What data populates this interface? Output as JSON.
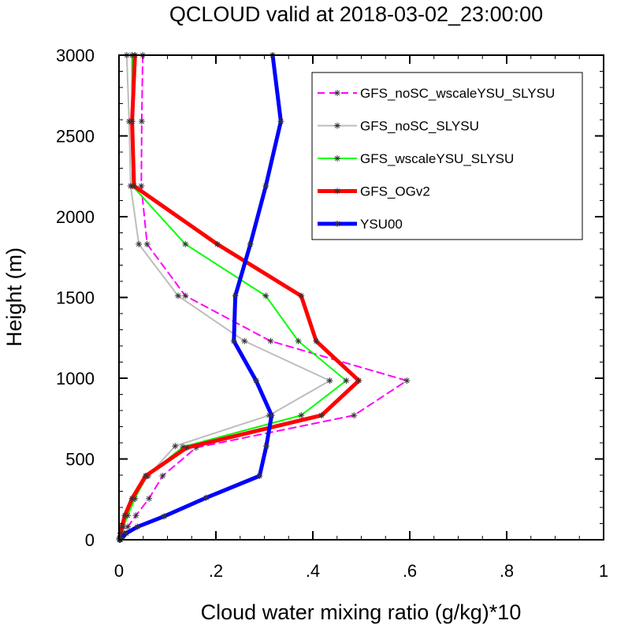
{
  "chart_data": {
    "type": "line",
    "title": "QCLOUD valid at 2018-03-02_23:00:00",
    "xlabel": "Cloud water mixing ratio (g/kg)*10",
    "ylabel": "Height (m)",
    "xlim": [
      0,
      1
    ],
    "ylim": [
      0,
      3000
    ],
    "x_ticks": [
      0,
      0.2,
      0.4,
      0.6,
      0.8,
      1
    ],
    "x_tick_labels": [
      "0",
      ".2",
      ".4",
      ".6",
      ".8",
      "1"
    ],
    "y_ticks": [
      0,
      500,
      1000,
      1500,
      2000,
      2500,
      3000
    ],
    "y_tick_labels": [
      "0",
      "500",
      "1000",
      "1500",
      "2000",
      "2500",
      "3000"
    ],
    "grid": false,
    "legend_position": "top-right",
    "series": [
      {
        "name": "GFS_noSC_wscaleYSU_SLYSU",
        "color": "#ff00ff",
        "dash": "dashed",
        "width": 2,
        "markers": true,
        "points": [
          [
            0.049,
            3000
          ],
          [
            0.047,
            2590
          ],
          [
            0.046,
            2190
          ],
          [
            0.058,
            1830
          ],
          [
            0.137,
            1510
          ],
          [
            0.313,
            1230
          ],
          [
            0.594,
            985
          ],
          [
            0.485,
            770
          ],
          [
            0.159,
            570
          ],
          [
            0.09,
            395
          ],
          [
            0.062,
            255
          ],
          [
            0.035,
            150
          ],
          [
            0.018,
            80
          ],
          [
            0.01,
            40
          ],
          [
            0.005,
            10
          ],
          [
            0.002,
            0
          ]
        ]
      },
      {
        "name": "GFS_noSC_SLYSU",
        "color": "#bdbdbd",
        "dash": "solid",
        "width": 2,
        "markers": true,
        "points": [
          [
            0.016,
            3000
          ],
          [
            0.021,
            2590
          ],
          [
            0.024,
            2190
          ],
          [
            0.041,
            1830
          ],
          [
            0.122,
            1510
          ],
          [
            0.259,
            1230
          ],
          [
            0.435,
            985
          ],
          [
            0.31,
            770
          ],
          [
            0.116,
            580
          ],
          [
            0.06,
            395
          ],
          [
            0.03,
            250
          ],
          [
            0.014,
            150
          ],
          [
            0.006,
            80
          ],
          [
            0.003,
            40
          ],
          [
            0.001,
            10
          ],
          [
            0.001,
            0
          ]
        ]
      },
      {
        "name": "GFS_wscaleYSU_SLYSU",
        "color": "#00ff00",
        "dash": "solid",
        "width": 2,
        "markers": true,
        "points": [
          [
            0.027,
            3000
          ],
          [
            0.027,
            2590
          ],
          [
            0.028,
            2190
          ],
          [
            0.137,
            1830
          ],
          [
            0.303,
            1510
          ],
          [
            0.37,
            1230
          ],
          [
            0.469,
            985
          ],
          [
            0.376,
            770
          ],
          [
            0.132,
            575
          ],
          [
            0.057,
            395
          ],
          [
            0.033,
            255
          ],
          [
            0.018,
            150
          ],
          [
            0.009,
            80
          ],
          [
            0.004,
            40
          ],
          [
            0.002,
            10
          ],
          [
            0.001,
            0
          ]
        ]
      },
      {
        "name": "GFS_OGv2",
        "color": "#ff0000",
        "dash": "solid",
        "width": 5,
        "markers": true,
        "points": [
          [
            0.033,
            3000
          ],
          [
            0.027,
            2590
          ],
          [
            0.031,
            2190
          ],
          [
            0.203,
            1830
          ],
          [
            0.376,
            1510
          ],
          [
            0.407,
            1230
          ],
          [
            0.495,
            985
          ],
          [
            0.418,
            770
          ],
          [
            0.14,
            570
          ],
          [
            0.055,
            395
          ],
          [
            0.027,
            255
          ],
          [
            0.012,
            150
          ],
          [
            0.006,
            80
          ],
          [
            0.003,
            40
          ],
          [
            0.001,
            10
          ],
          [
            0.001,
            0
          ]
        ]
      },
      {
        "name": "YSU00",
        "color": "#0000ff",
        "dash": "solid",
        "width": 5,
        "markers": true,
        "points": [
          [
            0.317,
            3000
          ],
          [
            0.334,
            2590
          ],
          [
            0.303,
            2190
          ],
          [
            0.271,
            1830
          ],
          [
            0.24,
            1510
          ],
          [
            0.237,
            1230
          ],
          [
            0.283,
            985
          ],
          [
            0.315,
            770
          ],
          [
            0.304,
            580
          ],
          [
            0.29,
            395
          ],
          [
            0.18,
            260
          ],
          [
            0.093,
            145
          ],
          [
            0.038,
            80
          ],
          [
            0.015,
            40
          ],
          [
            0.006,
            10
          ],
          [
            0.003,
            0
          ]
        ]
      }
    ]
  }
}
